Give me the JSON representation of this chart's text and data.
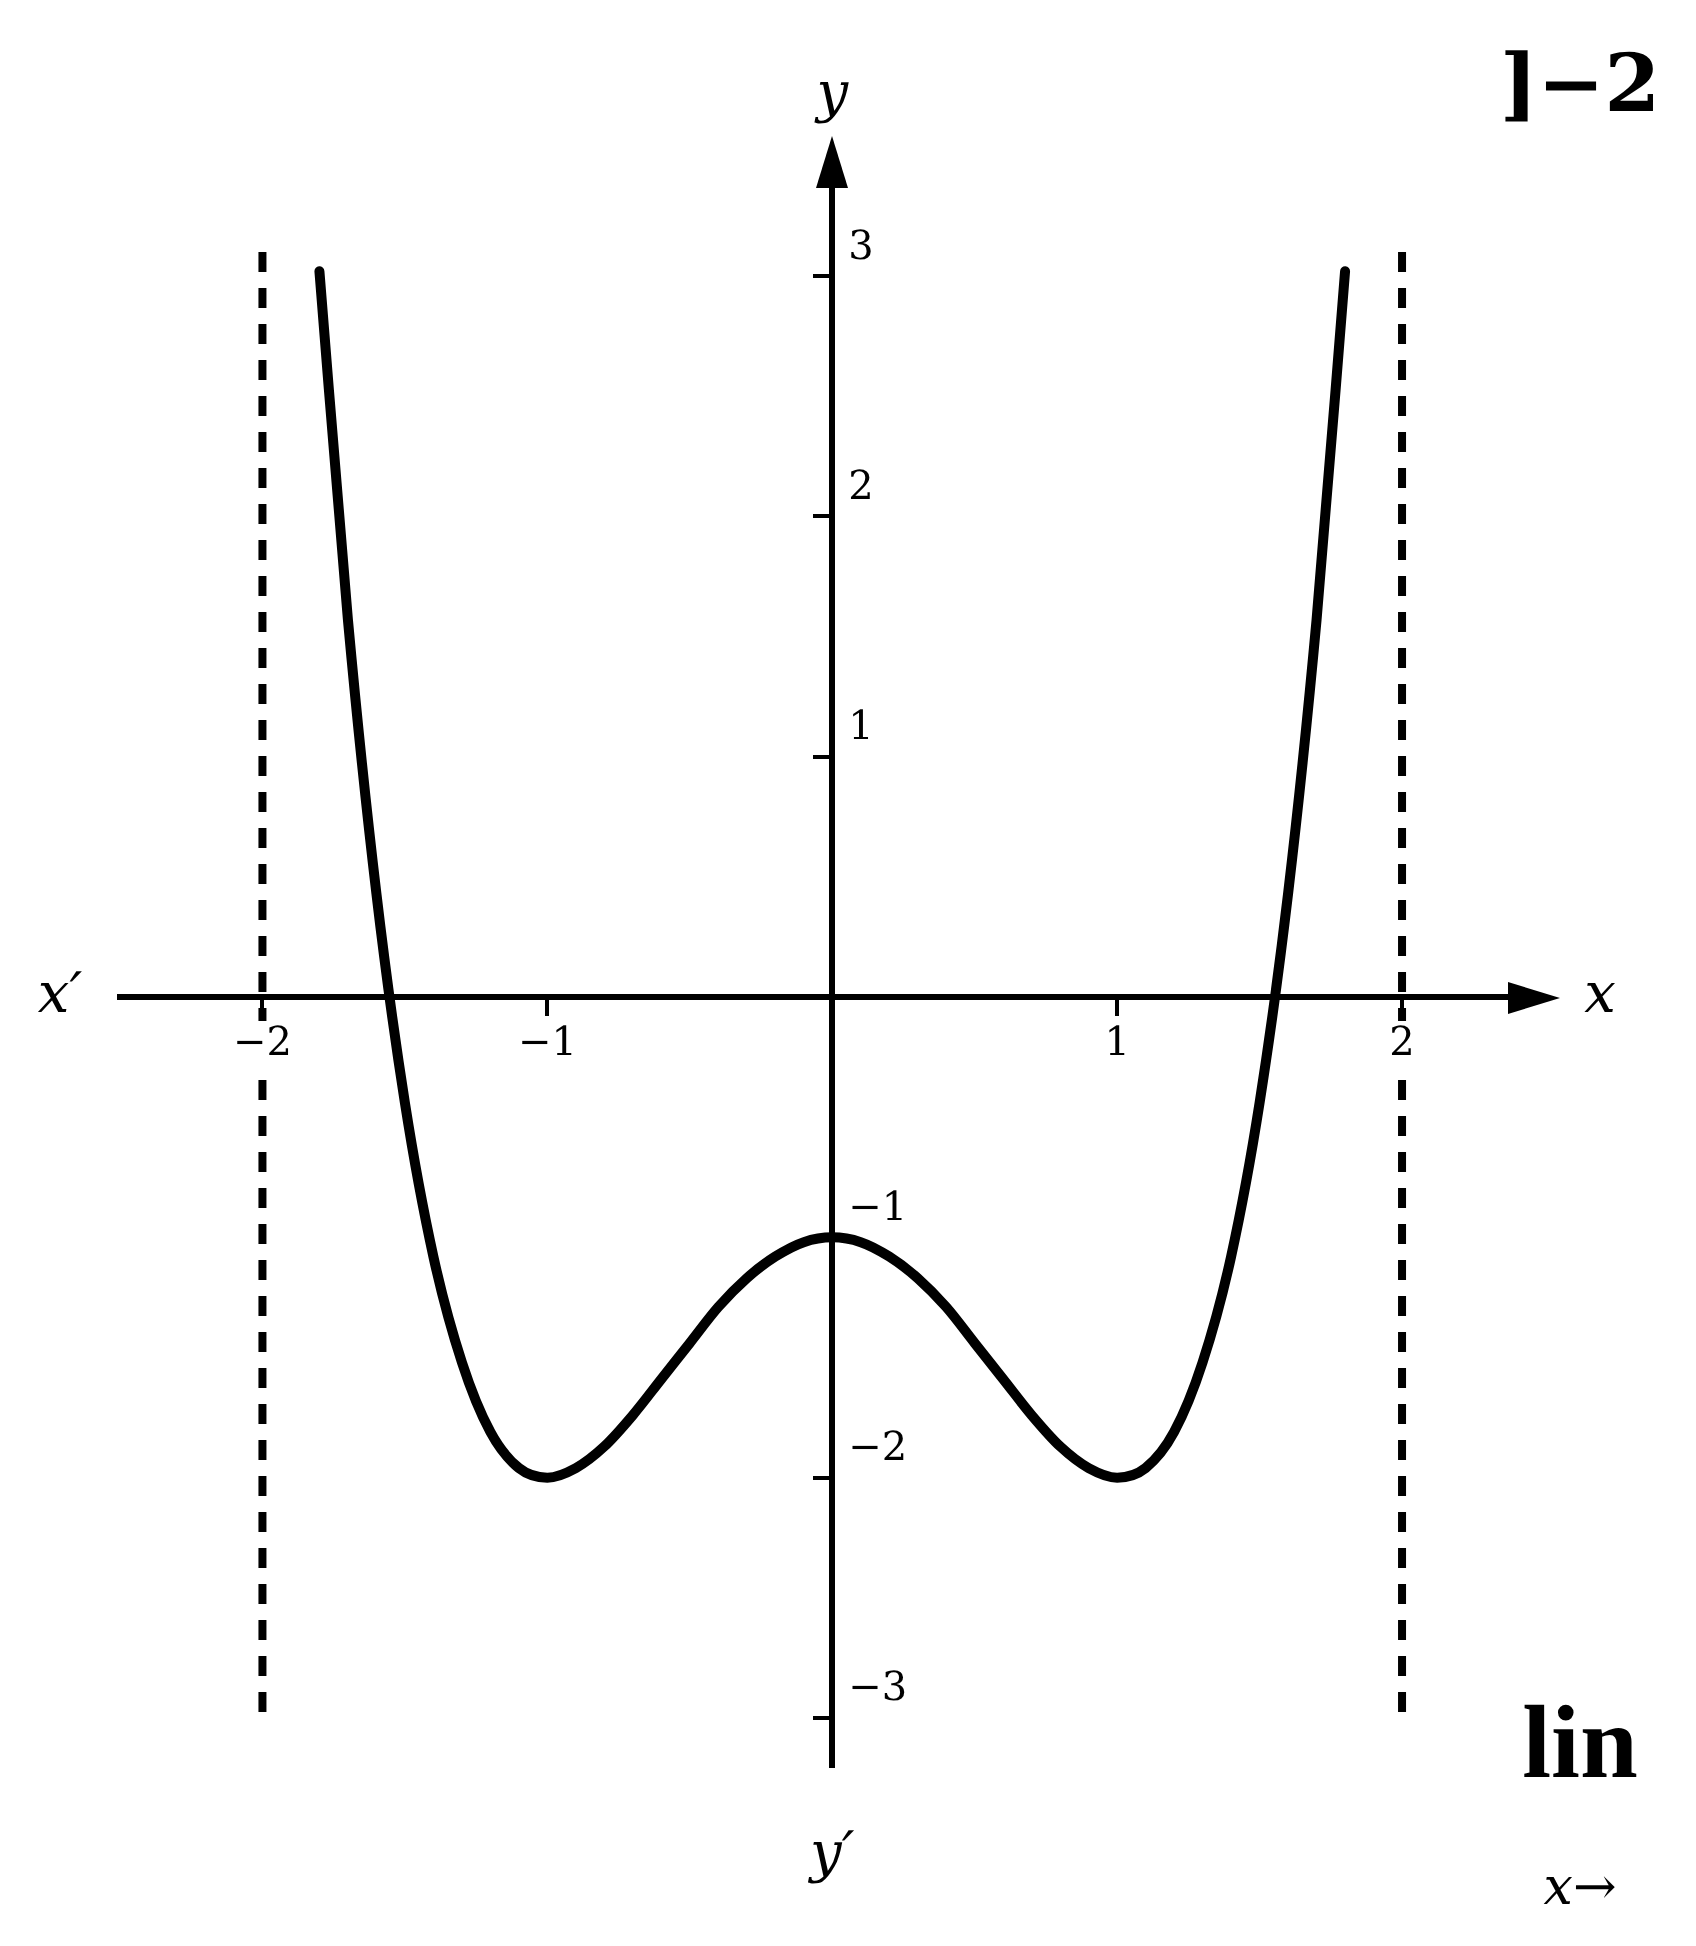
{
  "chart_data": {
    "type": "line",
    "xlabel": "x",
    "ylabel": "y",
    "annotations": [
      "x′",
      "y′",
      "]−2",
      "lin",
      "x→"
    ],
    "x": [
      -1.8,
      -1.7,
      -1.6,
      -1.5,
      -1.4,
      -1.3,
      -1.2,
      -1.1,
      -1.0,
      -0.9,
      -0.8,
      -0.7,
      -0.6,
      -0.5,
      -0.4,
      -0.3,
      -0.2,
      -0.1,
      0,
      0.1,
      0.2,
      0.3,
      0.4,
      0.5,
      0.6,
      0.7,
      0.8,
      0.9,
      1.0,
      1.1,
      1.2,
      1.3,
      1.4,
      1.5,
      1.6,
      1.7,
      1.8
    ],
    "series": [
      {
        "color": "#000000",
        "values": [
          3.02,
          1.57,
          0.43,
          -0.44,
          -1.08,
          -1.52,
          -1.81,
          -1.96,
          -2,
          -1.96,
          -1.87,
          -1.74,
          -1.59,
          -1.44,
          -1.29,
          -1.17,
          -1.08,
          -1.02,
          -1,
          -1.02,
          -1.08,
          -1.17,
          -1.29,
          -1.44,
          -1.59,
          -1.74,
          -1.87,
          -1.96,
          -2,
          -1.96,
          -1.81,
          -1.52,
          -1.08,
          -0.44,
          0.43,
          1.57,
          3.02
        ]
      }
    ],
    "xlim": [
      -2.5,
      2.4
    ],
    "ylim": [
      -3.2,
      3.4
    ],
    "xticks": [
      -2,
      -1,
      1,
      2
    ],
    "yticks": [
      -3,
      -2,
      -1,
      1,
      2,
      3
    ],
    "ref_lines": [
      {
        "axis": "x",
        "value": -2,
        "color": "#000000",
        "line_style": "dashed"
      },
      {
        "axis": "x",
        "value": 2,
        "color": "#000000",
        "line_style": "dashed"
      }
    ],
    "grid": false,
    "legend": false,
    "marker": "none",
    "line_style": "solid"
  }
}
